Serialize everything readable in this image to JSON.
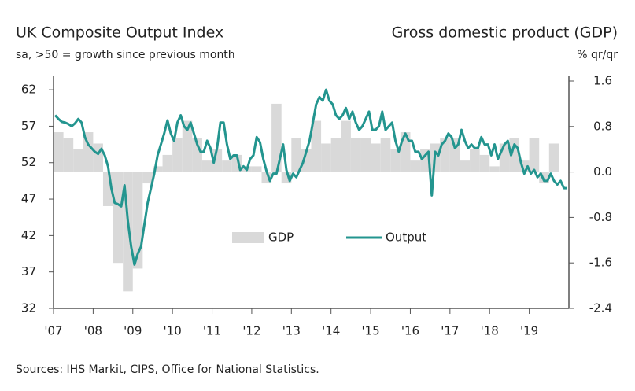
{
  "chart_data": {
    "type": "combo",
    "title": "UK Composite Output Index",
    "subtitle": "sa, >50 = growth since previous month",
    "y2_title": "Gross domestic product (GDP)",
    "y2_subtitle": "% qr/qr",
    "source": "Sources: IHS Markit, CIPS, Office for National Statistics.",
    "xlim": [
      2007,
      2020
    ],
    "xticks": [
      {
        "value": 2007,
        "label": "'07"
      },
      {
        "value": 2008,
        "label": "'08"
      },
      {
        "value": 2009,
        "label": "'09"
      },
      {
        "value": 2010,
        "label": "'10"
      },
      {
        "value": 2011,
        "label": "'11"
      },
      {
        "value": 2012,
        "label": "'12"
      },
      {
        "value": 2013,
        "label": "'13"
      },
      {
        "value": 2014,
        "label": "'14"
      },
      {
        "value": 2015,
        "label": "'15"
      },
      {
        "value": 2016,
        "label": "'16"
      },
      {
        "value": 2017,
        "label": "'17"
      },
      {
        "value": 2018,
        "label": "'18"
      },
      {
        "value": 2019,
        "label": "'19"
      }
    ],
    "ylim": [
      32,
      63.2
    ],
    "yticks": [
      32,
      37,
      42,
      47,
      52,
      57,
      62
    ],
    "y2lim": [
      -2.4,
      1.6
    ],
    "y2ticks": [
      -2.4,
      -1.6,
      -0.8,
      {
        "value": 0,
        "label": "0.0"
      },
      0.8,
      1.6
    ],
    "grid": false,
    "legend": "center",
    "series": [
      {
        "name": "GDP",
        "type": "bar",
        "axis": "y2",
        "color": "#d9d9d9",
        "values": [
          0.7,
          0.6,
          0.4,
          0.7,
          0.5,
          -0.6,
          -1.6,
          -2.1,
          -1.7,
          -0.2,
          0.1,
          0.3,
          0.6,
          0.9,
          0.6,
          0.2,
          0.4,
          0.2,
          0.3,
          0.1,
          0.1,
          -0.2,
          1.2,
          -0.2,
          0.6,
          0.4,
          0.9,
          0.5,
          0.6,
          0.9,
          0.6,
          0.6,
          0.5,
          0.6,
          0.4,
          0.7,
          0.2,
          0.4,
          0.5,
          0.6,
          0.6,
          0.2,
          0.4,
          0.3,
          0.1,
          0.5,
          0.6,
          0.2,
          0.6,
          -0.2,
          0.5,
          0.0
        ]
      },
      {
        "name": "Output",
        "type": "line",
        "axis": "y",
        "color": "#23958f",
        "values": [
          58.5,
          58.0,
          57.6,
          57.5,
          57.3,
          57.0,
          57.4,
          58.0,
          57.5,
          55.5,
          54.5,
          54.0,
          53.5,
          53.2,
          53.9,
          53.0,
          51.5,
          48.5,
          46.5,
          46.3,
          46.0,
          48.9,
          44.0,
          40.5,
          38.0,
          39.5,
          40.5,
          43.5,
          46.5,
          48.5,
          50.5,
          53.0,
          54.5,
          56.0,
          57.8,
          56.0,
          55.0,
          57.5,
          58.5,
          57.0,
          56.5,
          57.5,
          56.0,
          54.5,
          53.5,
          53.5,
          55.0,
          54.0,
          52.0,
          54.0,
          57.5,
          57.5,
          54.5,
          52.5,
          53.0,
          53.0,
          51.0,
          51.5,
          51.0,
          52.5,
          53.0,
          55.5,
          54.8,
          52.5,
          50.8,
          49.5,
          50.5,
          50.5,
          52.5,
          54.5,
          51.0,
          49.5,
          50.5,
          50.0,
          51.0,
          52.0,
          53.5,
          55.0,
          57.5,
          60.0,
          61.0,
          60.5,
          62.0,
          60.5,
          60.0,
          58.5,
          58.0,
          58.5,
          59.5,
          58.0,
          59.0,
          57.5,
          56.5,
          57.0,
          58.0,
          59.0,
          56.5,
          56.5,
          57.0,
          59.0,
          56.5,
          57.0,
          57.5,
          55.0,
          53.5,
          55.0,
          56.0,
          55.0,
          55.0,
          53.5,
          53.5,
          52.5,
          53.0,
          53.5,
          47.5,
          53.5,
          53.0,
          54.5,
          55.0,
          56.0,
          55.5,
          54.0,
          54.5,
          56.5,
          55.0,
          54.0,
          54.5,
          54.0,
          54.0,
          55.5,
          54.5,
          54.5,
          53.0,
          54.5,
          52.5,
          53.5,
          54.5,
          55.0,
          53.0,
          54.5,
          54.0,
          52.0,
          50.5,
          51.5,
          50.5,
          51.0,
          50.0,
          50.5,
          49.5,
          49.5,
          50.5,
          49.5,
          49.0,
          49.5,
          48.5,
          48.5
        ]
      }
    ]
  }
}
